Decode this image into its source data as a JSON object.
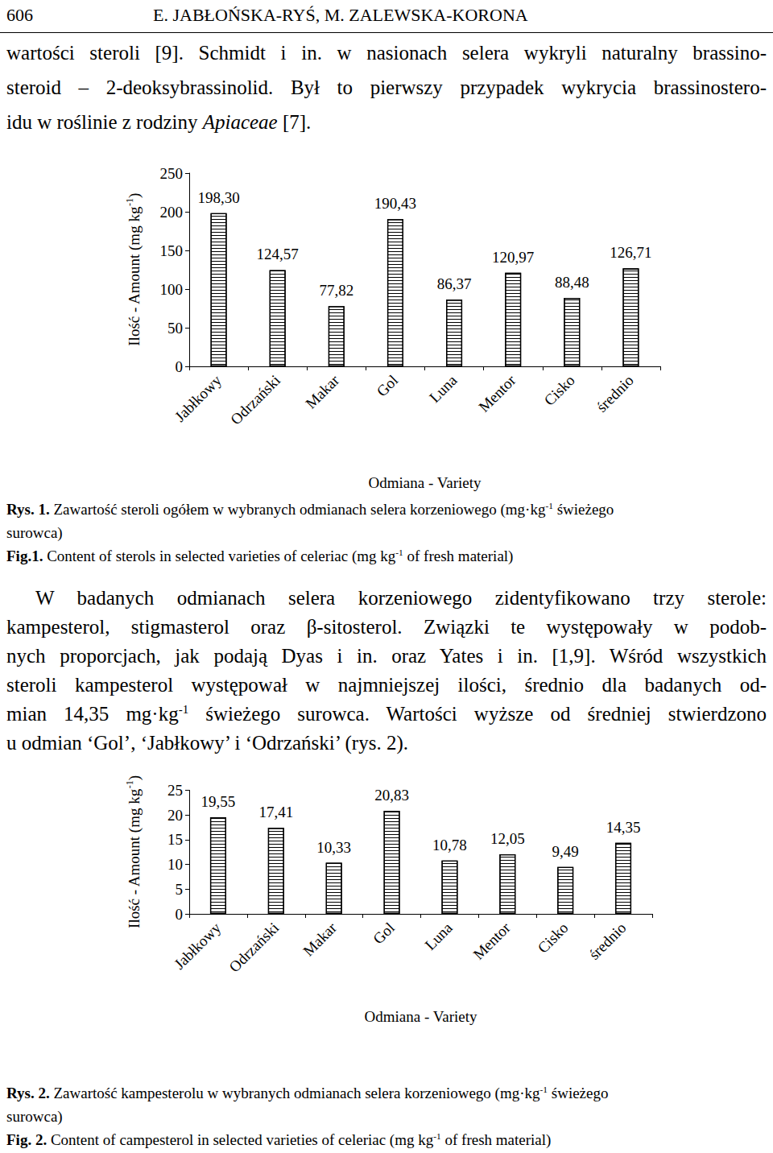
{
  "header": {
    "page": "606",
    "authors": "E. JABŁOŃSKA-RYŚ, M. ZALEWSKA-KORONA"
  },
  "paragraphs": [
    [
      [
        {
          "t": "wartości steroli [9]. Schmidt i in. w nasionach selera wykryli naturalny brassino-"
        }
      ],
      [
        {
          "t": "steroid – 2-deoksybrassinolid. Był to pierwszy przypadek wykrycia brassinostero-"
        }
      ],
      [
        {
          "t": "idu w roślinie z rodziny "
        },
        {
          "i": "Apiaceae"
        },
        {
          "t": " [7]."
        }
      ]
    ],
    [
      [
        {
          "t": "W badanych odmianach selera korzeniowego zidentyfikowano trzy sterole:"
        }
      ],
      [
        {
          "t": "kampesterol, stigmasterol oraz β-sitosterol. Związki te występowały w podob-"
        }
      ],
      [
        {
          "t": "nych proporcjach, jak podają Dyas i in. oraz Yates i in. [1,9]. Wśród wszystkich"
        }
      ],
      [
        {
          "t": "steroli kampesterol występował w najmniejszej ilości, średnio dla badanych od-"
        }
      ],
      [
        {
          "t": "mian 14,35 mg·kg"
        },
        {
          "sup": "-1"
        },
        {
          "t": " świeżego surowca. Wartości wyższe od średniej stwierdzono"
        }
      ],
      [
        {
          "t": "u odmian ‘Gol’, ‘Jabłkowy’ i ‘Odrzański’ (rys. 2)."
        }
      ]
    ]
  ],
  "chart_data": [
    {
      "type": "bar",
      "y_label": [
        {
          "t": "Ilość - Amount (mg kg"
        },
        {
          "sup": "-1"
        },
        {
          "t": ")"
        }
      ],
      "x_label": "Odmiana - Variety",
      "categories": [
        "Jabłkowy",
        "Odrzański",
        "Makar",
        "Gol",
        "Luna",
        "Mentor",
        "Cisko",
        "średnio"
      ],
      "values": [
        198.3,
        124.57,
        77.82,
        190.43,
        86.37,
        120.97,
        88.48,
        126.71
      ],
      "value_labels": [
        "198,30",
        "124,57",
        "77,82",
        "190,43",
        "86,37",
        "120,97",
        "88,48",
        "126,71"
      ],
      "ylim": [
        0,
        250
      ],
      "yticks": [
        0,
        50,
        100,
        150,
        200,
        250
      ],
      "grid": false,
      "data_labels": true,
      "color": "#000000",
      "caption": [
        [
          {
            "b": "Rys. 1."
          },
          {
            "t": " Zawartość steroli ogółem w wybranych odmianach selera korzeniowego (mg·kg"
          },
          {
            "sup": "-1"
          },
          {
            "t": " świeżego"
          }
        ],
        [
          {
            "t": "surowca)"
          }
        ],
        [
          {
            "b": "Fig.1."
          },
          {
            "t": " Content of sterols in selected varieties of celeriac (mg kg"
          },
          {
            "sup": "-1"
          },
          {
            "t": " of fresh material)"
          }
        ]
      ]
    },
    {
      "type": "bar",
      "y_label": [
        {
          "t": "Ilość - Amount (mg kg"
        },
        {
          "sup": "-1"
        },
        {
          "t": ")"
        }
      ],
      "x_label": "Odmiana - Variety",
      "categories": [
        "Jabłkowy",
        "Odrzański",
        "Makar",
        "Gol",
        "Luna",
        "Mentor",
        "Cisko",
        "średnio"
      ],
      "values": [
        19.55,
        17.41,
        10.33,
        20.83,
        10.78,
        12.05,
        9.49,
        14.35
      ],
      "value_labels": [
        "19,55",
        "17,41",
        "10,33",
        "20,83",
        "10,78",
        "12,05",
        "9,49",
        "14,35"
      ],
      "ylim": [
        0,
        25
      ],
      "yticks": [
        0,
        5,
        10,
        15,
        20,
        25
      ],
      "grid": false,
      "data_labels": true,
      "color": "#000000",
      "caption": [
        [
          {
            "b": "Rys. 2."
          },
          {
            "t": " Zawartość kampesterolu w wybranych odmianach selera korzeniowego (mg·kg"
          },
          {
            "sup": "-1"
          },
          {
            "t": " świeżego"
          }
        ],
        [
          {
            "t": "surowca)"
          }
        ],
        [
          {
            "b": "Fig. 2."
          },
          {
            "t": " Content of campesterol in selected varieties of celeriac (mg kg"
          },
          {
            "sup": "-1"
          },
          {
            "t": " of fresh material)"
          }
        ]
      ]
    }
  ]
}
